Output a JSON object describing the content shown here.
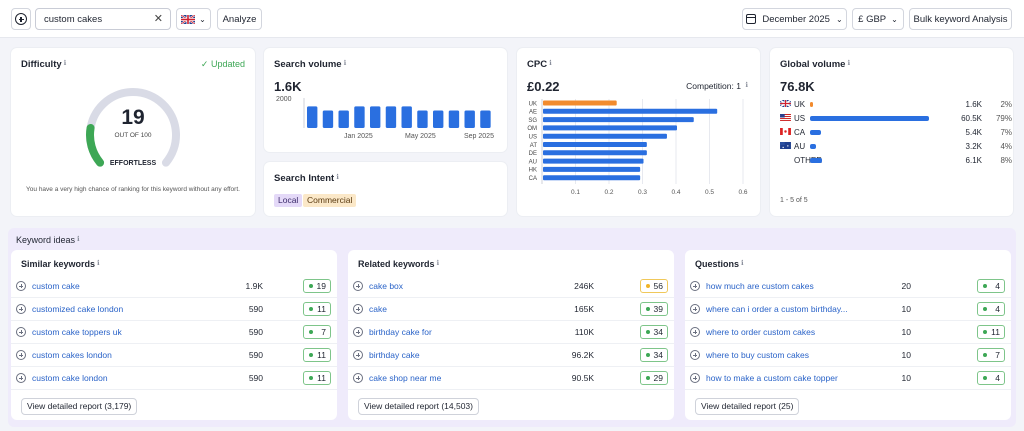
{
  "header": {
    "search_value": "custom cakes",
    "analyze_label": "Analyze",
    "date_label": "December 2025",
    "currency_label": "£ GBP",
    "bulk_label": "Bulk keyword Analysis"
  },
  "difficulty": {
    "title": "Difficulty",
    "info": "ℹ",
    "status": "Updated",
    "score": "19",
    "score_fraction": 0.19,
    "out_of": "OUT OF 100",
    "level": "EFFORTLESS",
    "description": "You have a very high chance of ranking for this keyword without any effort."
  },
  "search_volume": {
    "title": "Search volume",
    "info": "ℹ",
    "value": "1.6K",
    "y_tick": "2000",
    "x_ticks": [
      "Jan 2025",
      "May 2025",
      "Sep 2025"
    ]
  },
  "search_intent": {
    "title": "Search Intent",
    "info": "ℹ",
    "tags": [
      "Local",
      "Commercial"
    ],
    "colors": {
      "local": "#e4d9f8",
      "commercial": "#fbe8c8"
    }
  },
  "cpc": {
    "title": "CPC",
    "info": "ℹ",
    "value": "£0.22",
    "competition_label": "Competition:",
    "competition_value": "1",
    "x_ticks": [
      "0.1",
      "0.2",
      "0.3",
      "0.4",
      "0.5",
      "0.6"
    ]
  },
  "global_volume": {
    "title": "Global volume",
    "info": "ℹ",
    "value": "76.8K",
    "pagination": "1 - 5 of 5",
    "rows": [
      {
        "country": "UK",
        "flag": "uk-flag",
        "volume": "1.6K",
        "share": "2%",
        "fraction": 0.02
      },
      {
        "country": "US",
        "flag": "us-flag",
        "volume": "60.5K",
        "share": "79%",
        "fraction": 0.79
      },
      {
        "country": "CA",
        "flag": "ca-flag",
        "volume": "5.4K",
        "share": "7%",
        "fraction": 0.07
      },
      {
        "country": "AU",
        "flag": "au-flag",
        "volume": "3.2K",
        "share": "4%",
        "fraction": 0.04
      },
      {
        "country": "OTHER",
        "flag": "",
        "volume": "6.1K",
        "share": "8%",
        "fraction": 0.08
      }
    ]
  },
  "keyword_ideas": {
    "title": "Keyword ideas",
    "info": "ℹ",
    "similar": {
      "title": "Similar keywords",
      "info": "ℹ",
      "view": "View detailed report (3,179)",
      "rows": [
        {
          "keyword": "custom cake",
          "volume": "1.9K",
          "kd": "19",
          "kd_color": "green"
        },
        {
          "keyword": "customized cake london",
          "volume": "590",
          "kd": "11",
          "kd_color": "green"
        },
        {
          "keyword": "custom cake toppers uk",
          "volume": "590",
          "kd": "7",
          "kd_color": "green"
        },
        {
          "keyword": "custom cakes london",
          "volume": "590",
          "kd": "11",
          "kd_color": "green"
        },
        {
          "keyword": "custom cake london",
          "volume": "590",
          "kd": "11",
          "kd_color": "green"
        }
      ]
    },
    "related": {
      "title": "Related keywords",
      "info": "ℹ",
      "view": "View detailed report (14,503)",
      "rows": [
        {
          "keyword": "cake box",
          "volume": "246K",
          "kd": "56",
          "kd_color": "yellow"
        },
        {
          "keyword": "cake",
          "volume": "165K",
          "kd": "39",
          "kd_color": "green"
        },
        {
          "keyword": "birthday cake for",
          "volume": "110K",
          "kd": "34",
          "kd_color": "green"
        },
        {
          "keyword": "birthday cake",
          "volume": "96.2K",
          "kd": "34",
          "kd_color": "green"
        },
        {
          "keyword": "cake shop near me",
          "volume": "90.5K",
          "kd": "29",
          "kd_color": "green"
        }
      ]
    },
    "questions": {
      "title": "Questions",
      "info": "ℹ",
      "view": "View detailed report (25)",
      "rows": [
        {
          "keyword": "how much are custom cakes",
          "volume": "20",
          "kd": "4",
          "kd_color": "green"
        },
        {
          "keyword": "where can i order a custom birthday...",
          "volume": "10",
          "kd": "4",
          "kd_color": "green"
        },
        {
          "keyword": "where to order custom cakes",
          "volume": "10",
          "kd": "11",
          "kd_color": "green"
        },
        {
          "keyword": "where to buy custom cakes",
          "volume": "10",
          "kd": "7",
          "kd_color": "green"
        },
        {
          "keyword": "how to make a custom cake topper",
          "volume": "10",
          "kd": "4",
          "kd_color": "green"
        }
      ]
    }
  },
  "chart_data": [
    {
      "type": "bar",
      "categories": [
        "Jan 2025",
        "Feb 2025",
        "Mar 2025",
        "Apr 2025",
        "May 2025",
        "Jun 2025",
        "Jul 2025",
        "Aug 2025",
        "Sep 2025",
        "Oct 2025",
        "Nov 2025",
        "Dec 2025"
      ],
      "values": [
        1600,
        1300,
        1300,
        1600,
        1600,
        1600,
        1600,
        1300,
        1300,
        1300,
        1300,
        1300
      ],
      "ylim": [
        0,
        2000
      ],
      "color": "#2a6fe0"
    },
    {
      "type": "bar",
      "orientation": "horizontal",
      "categories": [
        "UK",
        "AE",
        "SG",
        "OM",
        "US",
        "AT",
        "DE",
        "AU",
        "HK",
        "CA"
      ],
      "values": [
        0.22,
        0.52,
        0.45,
        0.4,
        0.37,
        0.31,
        0.31,
        0.3,
        0.29,
        0.29
      ],
      "xlim": [
        0,
        0.6
      ],
      "highlight": "UK",
      "colors": {
        "highlight": "#f28b2e",
        "default": "#2a6fe0"
      }
    }
  ]
}
